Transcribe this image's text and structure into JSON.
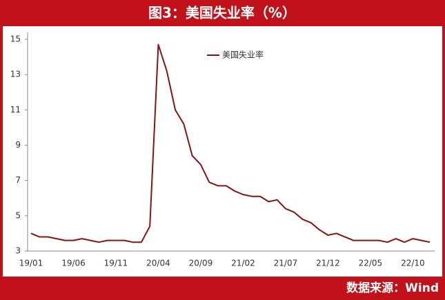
{
  "chart_data": {
    "type": "line",
    "title": "图3：美国失业率（%）",
    "source": "数据来源：Wind",
    "categories": [
      "19/01",
      null,
      null,
      null,
      null,
      "19/06",
      null,
      null,
      null,
      null,
      "19/11",
      null,
      null,
      null,
      null,
      "20/04",
      null,
      null,
      null,
      null,
      "20/09",
      null,
      null,
      null,
      null,
      "21/02",
      null,
      null,
      null,
      null,
      "21/07",
      null,
      null,
      null,
      null,
      "21/12",
      null,
      null,
      null,
      null,
      "22/05",
      null,
      null,
      null,
      null,
      "22/10",
      null,
      null
    ],
    "series": [
      {
        "name": "美国失业率",
        "color": "#8b1010",
        "values": [
          4.0,
          3.8,
          3.8,
          3.7,
          3.6,
          3.6,
          3.7,
          3.6,
          3.5,
          3.6,
          3.6,
          3.6,
          3.5,
          3.5,
          4.4,
          14.7,
          13.2,
          11.0,
          10.2,
          8.4,
          7.9,
          6.9,
          6.7,
          6.7,
          6.4,
          6.2,
          6.1,
          6.1,
          5.8,
          5.9,
          5.4,
          5.2,
          4.8,
          4.6,
          4.2,
          3.9,
          4.0,
          3.8,
          3.6,
          3.6,
          3.6,
          3.6,
          3.5,
          3.7,
          3.5,
          3.7,
          3.6,
          3.5
        ]
      }
    ],
    "ylim": [
      3,
      15
    ],
    "yticks": [
      3,
      5,
      7,
      9,
      11,
      13,
      15
    ],
    "legend": "top-center"
  }
}
